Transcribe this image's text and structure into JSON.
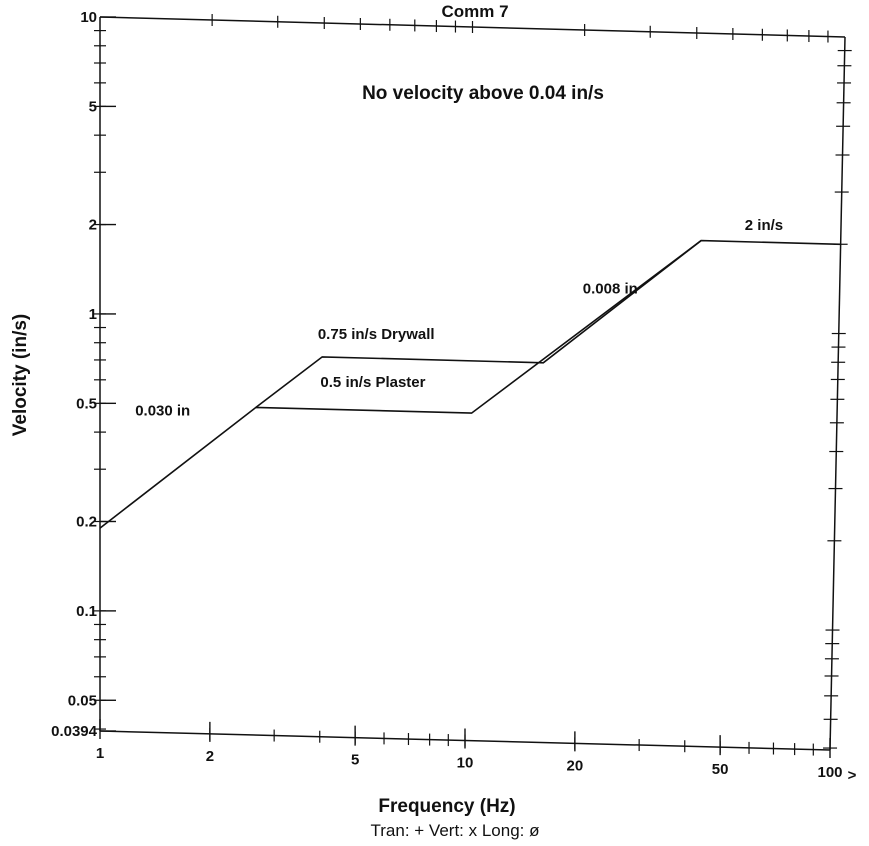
{
  "chart_data": {
    "type": "line",
    "title": "Comm 7",
    "annotation_main": "No velocity above 0.04 in/s",
    "xlabel": "Frequency (Hz)",
    "ylabel": "Velocity (in/s)",
    "xscale": "log",
    "yscale": "log",
    "xlim": [
      1,
      100
    ],
    "ylim": [
      0.0394,
      10
    ],
    "x_ticks": [
      {
        "value": 1,
        "label": "1"
      },
      {
        "value": 2,
        "label": "2"
      },
      {
        "value": 5,
        "label": "5"
      },
      {
        "value": 10,
        "label": "10"
      },
      {
        "value": 20,
        "label": "20"
      },
      {
        "value": 50,
        "label": "50"
      },
      {
        "value": 100,
        "label": "100"
      }
    ],
    "y_ticks": [
      {
        "value": 10,
        "label": "10"
      },
      {
        "value": 5,
        "label": "5"
      },
      {
        "value": 2,
        "label": "2"
      },
      {
        "value": 1,
        "label": "1"
      },
      {
        "value": 0.5,
        "label": "0.5"
      },
      {
        "value": 0.2,
        "label": "0.2"
      },
      {
        "value": 0.1,
        "label": "0.1"
      },
      {
        "value": 0.05,
        "label": "0.05"
      },
      {
        "value": 0.0394,
        "label": "0.0394"
      }
    ],
    "x_overflow_marker": ">",
    "series": [
      {
        "x": [
          1,
          2.65,
          10.2,
          42,
          100
        ],
        "y": [
          0.19,
          0.5,
          0.5,
          2,
          2
        ]
      },
      {
        "x": [
          2.65,
          4,
          15.9,
          42
        ],
        "y": [
          0.5,
          0.75,
          0.75,
          2
        ]
      }
    ],
    "annotations": [
      {
        "text": "0.030 in",
        "x": 1.48,
        "y": 0.46
      },
      {
        "text": "0.75 in/s Drywall",
        "x": 5.6,
        "y": 0.87
      },
      {
        "text": "0.5 in/s Plaster",
        "x": 5.5,
        "y": 0.6
      },
      {
        "text": "0.008 in",
        "x": 24,
        "y": 1.3
      },
      {
        "text": "2 in/s",
        "x": 62,
        "y": 2.2
      }
    ],
    "legend_text": "Tran: +  Vert: x  Long: ø",
    "grid": false
  }
}
